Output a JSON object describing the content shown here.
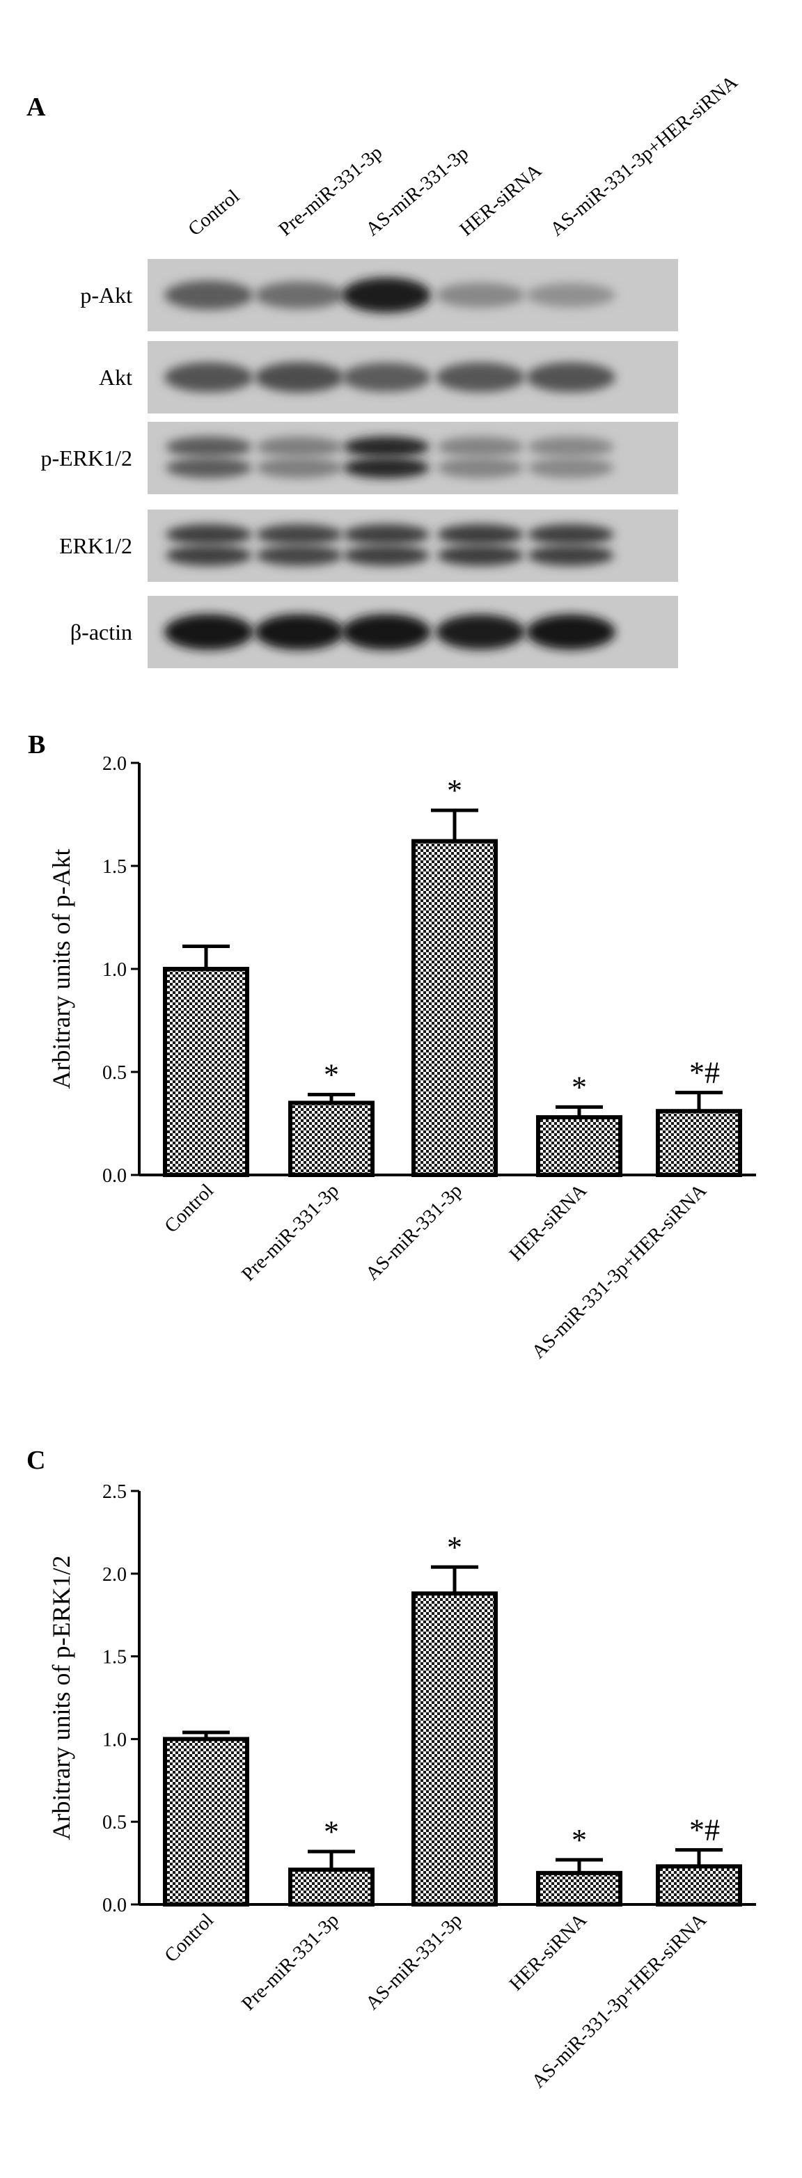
{
  "panels": {
    "a": "A",
    "b": "B",
    "c": "C"
  },
  "blot": {
    "lanes": [
      "Control",
      "Pre-miR-331-3p",
      "AS-miR-331-3p",
      "HER-siRNA",
      "AS-miR-331-3p+HER-siRNA"
    ],
    "rows": [
      {
        "label": "p-Akt",
        "intensity": [
          0.55,
          0.45,
          0.9,
          0.3,
          0.25
        ],
        "bands": 1
      },
      {
        "label": "Akt",
        "intensity": [
          0.6,
          0.62,
          0.55,
          0.58,
          0.6
        ],
        "bands": 1
      },
      {
        "label": "p-ERK1/2",
        "intensity": [
          0.55,
          0.35,
          0.85,
          0.32,
          0.3
        ],
        "bands": 2
      },
      {
        "label": "ERK1/2",
        "intensity": [
          0.7,
          0.68,
          0.7,
          0.72,
          0.7
        ],
        "bands": 2
      },
      {
        "label": "β-actin",
        "intensity": [
          0.95,
          0.95,
          0.95,
          0.9,
          0.92
        ],
        "bands": 1
      }
    ]
  },
  "chart_data": [
    {
      "type": "bar",
      "categories": [
        "Control",
        "Pre-miR-331-3p",
        "AS-miR-331-3p",
        "HER-siRNA",
        "AS-miR-331-3p+HER-siRNA"
      ],
      "values": [
        1.0,
        0.35,
        1.62,
        0.28,
        0.31
      ],
      "errors": [
        0.11,
        0.04,
        0.15,
        0.05,
        0.09
      ],
      "annotations": [
        "",
        "*",
        "*",
        "*",
        "*#"
      ],
      "ylabel": "Arbitrary units of p-Akt",
      "ylim": [
        0,
        2.0
      ],
      "yticks": [
        "0.0",
        "0.5",
        "1.0",
        "1.5",
        "2.0"
      ],
      "grid": false,
      "fill_pattern": "checkerboard"
    },
    {
      "type": "bar",
      "categories": [
        "Control",
        "Pre-miR-331-3p",
        "AS-miR-331-3p",
        "HER-siRNA",
        "AS-miR-331-3p+HER-siRNA"
      ],
      "values": [
        1.0,
        0.21,
        1.88,
        0.19,
        0.23
      ],
      "errors": [
        0.04,
        0.11,
        0.16,
        0.08,
        0.1
      ],
      "annotations": [
        "",
        "*",
        "*",
        "*",
        "*#"
      ],
      "ylabel": "Arbitrary units of p-ERK1/2",
      "ylim": [
        0,
        2.5
      ],
      "yticks": [
        "0.0",
        "0.5",
        "1.0",
        "1.5",
        "2.0",
        "2.5"
      ],
      "grid": false,
      "fill_pattern": "checkerboard"
    }
  ]
}
